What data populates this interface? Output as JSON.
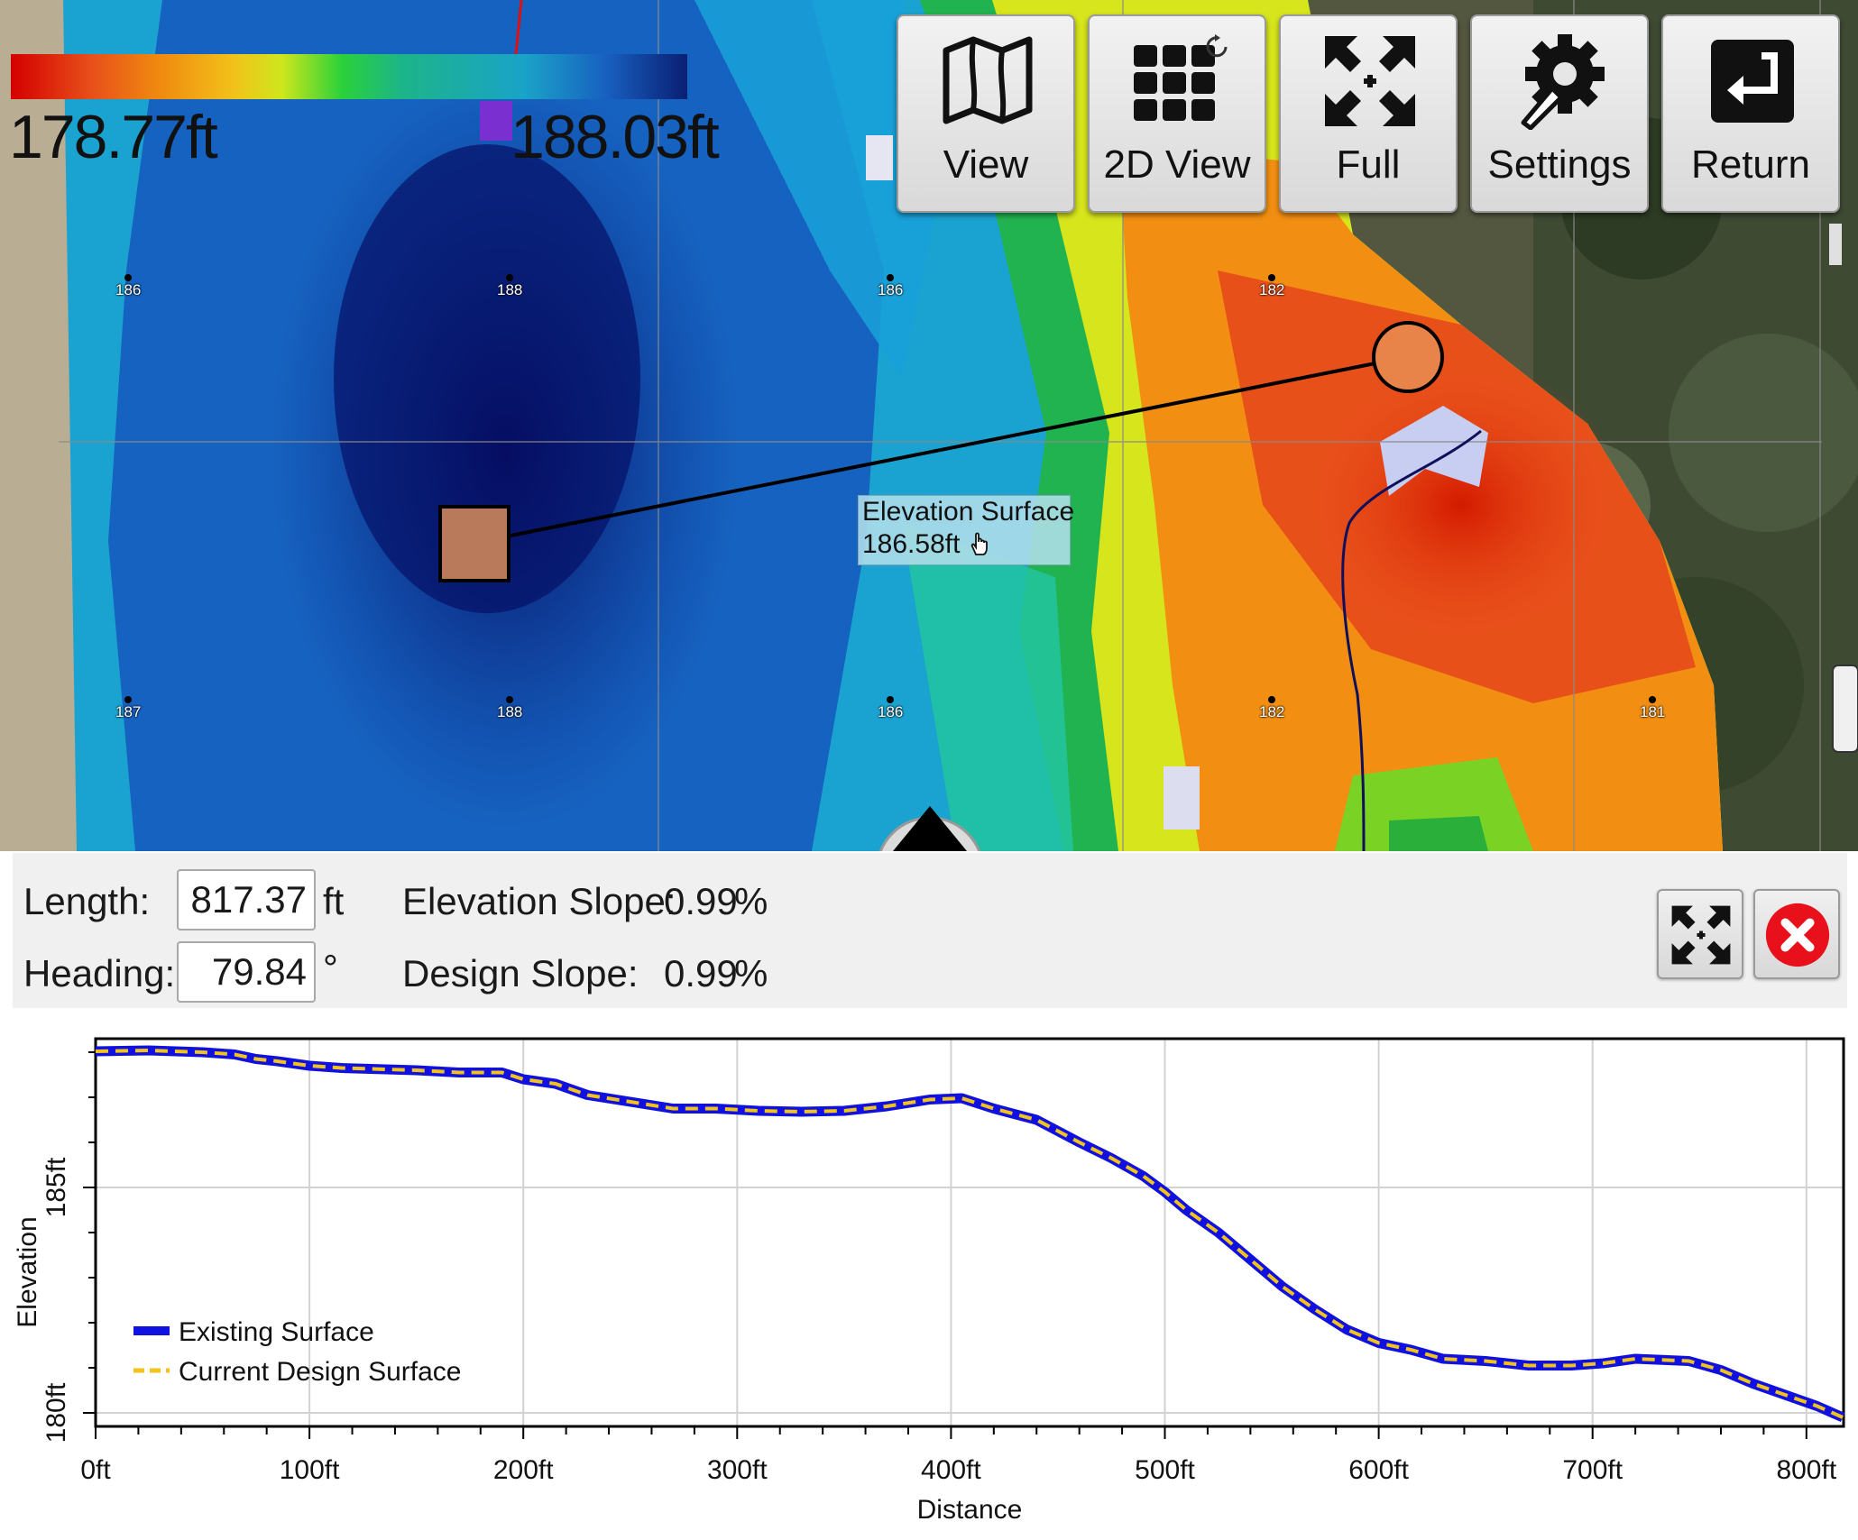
{
  "legend": {
    "min": "178.77ft",
    "max": "188.03ft",
    "min_color": "#d40000",
    "max_color": "#0a1f73"
  },
  "toolbar": [
    {
      "label": "View",
      "icon": "map-icon"
    },
    {
      "label": "2D View",
      "icon": "grid-refresh-icon"
    },
    {
      "label": "Full",
      "icon": "expand-arrows-icon"
    },
    {
      "label": "Settings",
      "icon": "gear-wrench-icon"
    },
    {
      "label": "Return",
      "icon": "return-arrow-icon"
    }
  ],
  "map": {
    "tooltip": {
      "title": "Elevation Surface",
      "value": "186.58ft",
      "icon": "hand-pointer-icon"
    },
    "grid_labels_top": [
      "186",
      "188",
      "186",
      "182"
    ],
    "grid_labels_bottom": [
      "187",
      "188",
      "186",
      "182",
      "181"
    ],
    "line_color": "#000000",
    "start_marker_color": "#b87a5a",
    "end_marker_color": "#e8844a"
  },
  "info": {
    "length_label": "Length:",
    "length_value": "817.37",
    "length_unit": "ft",
    "heading_label": "Heading:",
    "heading_value": "79.84",
    "heading_unit": "°",
    "elevation_slope_label": "Elevation Slope:",
    "elevation_slope_value": "0.99",
    "elevation_slope_unit": "%",
    "design_slope_label": "Design Slope:",
    "design_slope_value": "0.99",
    "design_slope_unit": "%",
    "expand_icon": "expand-arrows-icon",
    "close_icon": "close-icon"
  },
  "chart_data": {
    "type": "line",
    "xlabel": "Distance",
    "ylabel": "Elevation",
    "x_ticks": [
      "0ft",
      "100ft",
      "200ft",
      "300ft",
      "400ft",
      "500ft",
      "600ft",
      "700ft",
      "800ft"
    ],
    "y_ticks": [
      "180ft",
      "185ft"
    ],
    "xlim": [
      0,
      817.37
    ],
    "ylim": [
      179.7,
      188.3
    ],
    "grid": true,
    "legend_position": "bottom-left",
    "series": [
      {
        "name": "Existing Surface",
        "color": "#1010e0",
        "style": "solid",
        "x": [
          0,
          25,
          50,
          65,
          75,
          85,
          100,
          115,
          150,
          170,
          190,
          200,
          215,
          230,
          250,
          270,
          290,
          310,
          330,
          350,
          370,
          390,
          405,
          420,
          440,
          460,
          475,
          490,
          500,
          510,
          525,
          540,
          555,
          570,
          585,
          600,
          615,
          630,
          650,
          670,
          690,
          705,
          720,
          745,
          760,
          775,
          790,
          805,
          817
        ],
        "y": [
          188.02,
          188.04,
          188.0,
          187.95,
          187.85,
          187.8,
          187.7,
          187.65,
          187.6,
          187.55,
          187.55,
          187.4,
          187.3,
          187.05,
          186.9,
          186.75,
          186.75,
          186.7,
          186.68,
          186.7,
          186.8,
          186.95,
          186.98,
          186.75,
          186.5,
          186.0,
          185.65,
          185.25,
          184.9,
          184.5,
          184.0,
          183.4,
          182.8,
          182.3,
          181.85,
          181.55,
          181.4,
          181.2,
          181.15,
          181.05,
          181.05,
          181.1,
          181.2,
          181.15,
          180.95,
          180.65,
          180.4,
          180.15,
          179.9
        ]
      },
      {
        "name": "Current Design Surface",
        "color": "#f2c31a",
        "style": "dashed",
        "x": [
          0,
          25,
          50,
          65,
          75,
          85,
          100,
          115,
          150,
          170,
          190,
          200,
          215,
          230,
          250,
          270,
          290,
          310,
          330,
          350,
          370,
          390,
          405,
          420,
          440,
          460,
          475,
          490,
          500,
          510,
          525,
          540,
          555,
          570,
          585,
          600,
          615,
          630,
          650,
          670,
          690,
          705,
          720,
          745,
          760,
          775,
          790,
          805,
          817
        ],
        "y": [
          188.02,
          188.04,
          188.0,
          187.95,
          187.85,
          187.8,
          187.7,
          187.65,
          187.6,
          187.55,
          187.55,
          187.4,
          187.3,
          187.05,
          186.9,
          186.75,
          186.75,
          186.7,
          186.68,
          186.7,
          186.8,
          186.95,
          186.98,
          186.75,
          186.5,
          186.0,
          185.65,
          185.25,
          184.9,
          184.5,
          184.0,
          183.4,
          182.8,
          182.3,
          181.85,
          181.55,
          181.4,
          181.2,
          181.15,
          181.05,
          181.05,
          181.1,
          181.2,
          181.15,
          180.95,
          180.65,
          180.4,
          180.15,
          179.9
        ]
      }
    ]
  }
}
